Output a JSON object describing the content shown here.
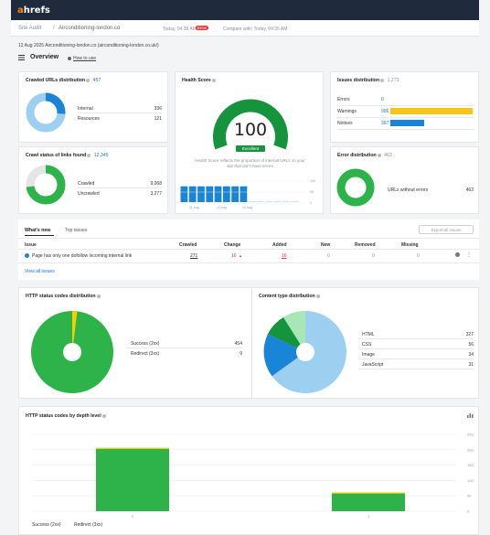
{
  "brand": {
    "logo_a": "a",
    "logo_rest": "hrefs"
  },
  "header": {
    "tool": "Site Audit",
    "separator": "/",
    "project": "Airconditioning-london.co",
    "today_label": "Today, 04:38 AM",
    "error_badge": "Error",
    "compare_label": "Compare with: Today, 04:35 AM"
  },
  "crawl_line": "12 Aug 2025 Airconditioning-london.co (airconditioning-london.co.uk/)",
  "overview": {
    "title": "Overview",
    "how_to": "How to use"
  },
  "crawled_urls": {
    "title": "Crawled URLs distribution",
    "total": "457",
    "rows": [
      {
        "label": "Internal",
        "value": "336"
      },
      {
        "label": "Resources",
        "value": "121"
      }
    ]
  },
  "crawl_status": {
    "title": "Crawl status of links found",
    "total": "12,345",
    "rows": [
      {
        "label": "Crawled",
        "value": "9,068"
      },
      {
        "label": "Uncrawled",
        "value": "3,277"
      }
    ]
  },
  "health": {
    "title": "Health Score",
    "score": "100",
    "badge": "Excellent",
    "desc_line1": "Health Score reflects the proportion of internal URLs on your",
    "desc_line2": "site that don't have errors",
    "axis_labels": [
      "11 Aug",
      "12 Aug",
      "12 Aug"
    ],
    "y_labels": [
      "100",
      "50",
      "0"
    ],
    "bars": [
      72,
      72,
      72,
      72,
      72,
      72,
      72,
      72,
      0,
      0,
      0,
      0,
      0,
      0
    ]
  },
  "issues_dist": {
    "title": "Issues distribution",
    "total": "1,273",
    "rows": [
      {
        "label": "Errors",
        "value": "0",
        "fraction": 0.0,
        "color": "#e53935"
      },
      {
        "label": "Warnings",
        "value": "906",
        "fraction": 1.0,
        "color": "#f5c518"
      },
      {
        "label": "Notices",
        "value": "367",
        "fraction": 0.41,
        "color": "#1a85d6"
      }
    ]
  },
  "error_dist": {
    "title": "Error distribution",
    "total": "463",
    "row_label": "URLs without errors",
    "row_value": "463"
  },
  "tabs": {
    "whats_new": "What's new",
    "top_issues": "Top issues",
    "export": "Export all issues"
  },
  "issues_table": {
    "headers": [
      "Issue",
      "Crawled",
      "Change",
      "Added",
      "New",
      "Removed",
      "Missing"
    ],
    "row": {
      "issue": "Page has only one dofollow incoming internal link",
      "crawled": "271",
      "change": "16",
      "added": "16",
      "new": "0",
      "removed": "0",
      "missing": "0"
    },
    "view_all": "View all issues"
  },
  "http_status": {
    "title": "HTTP status codes distribution",
    "rows": [
      {
        "label": "Success (2xx)",
        "value": "454"
      },
      {
        "label": "Redirect (3xx)",
        "value": "9"
      }
    ]
  },
  "content_type": {
    "title": "Content type distribution",
    "rows": [
      {
        "label": "HTML",
        "value": "327"
      },
      {
        "label": "CSS",
        "value": "56"
      },
      {
        "label": "Image",
        "value": "34"
      },
      {
        "label": "JavaScript",
        "value": "31"
      }
    ]
  },
  "depth_chart": {
    "title": "HTTP status codes by depth level",
    "legend": [
      "Success (2xx)",
      "Redirect (3xx)"
    ]
  },
  "chart_data": [
    {
      "type": "bar",
      "categories": [
        "0",
        "1"
      ],
      "series": [
        {
          "name": "Success (2xx)",
          "values": [
            206,
            61
          ]
        }
      ],
      "y_ticks": [
        "250",
        "200",
        "150",
        "100",
        "50",
        "0"
      ],
      "ylim": [
        0,
        250
      ]
    }
  ],
  "colors": {
    "green": "#2db34a",
    "dark_green": "#16943d",
    "light_blue": "#9ccff0",
    "blue": "#1a85d6",
    "yellow": "#f5d000",
    "navy": "#1f2a3c"
  }
}
